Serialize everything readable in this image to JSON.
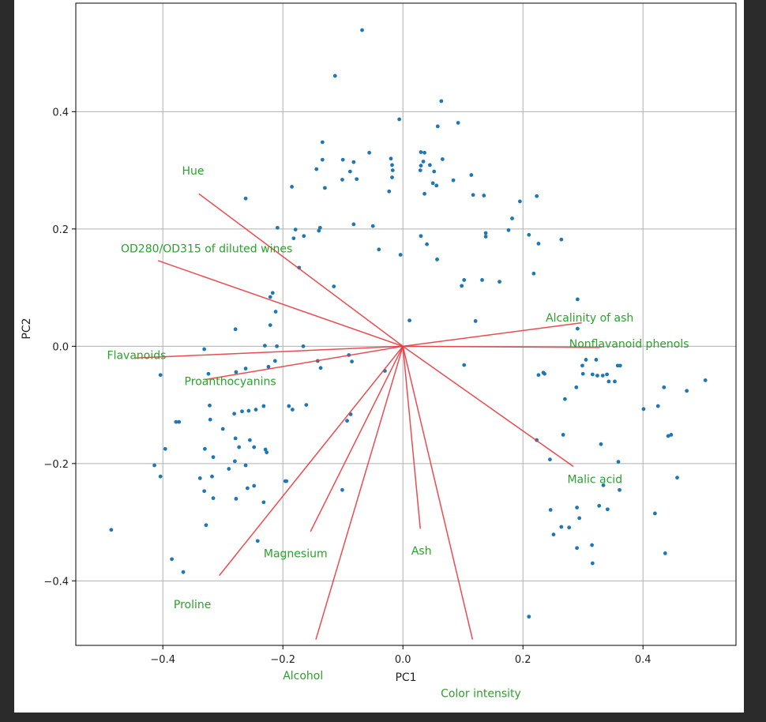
{
  "chart_data": {
    "type": "scatter",
    "title": "",
    "xlabel": "PC1",
    "ylabel": "PC2",
    "xlim": [
      -0.545,
      0.555
    ],
    "ylim": [
      -0.51,
      0.585
    ],
    "grid": true,
    "x_ticks": [
      "−0.4",
      "−0.2",
      "0.0",
      "0.2",
      "0.4"
    ],
    "x_tick_values": [
      -0.4,
      -0.2,
      0.0,
      0.2,
      0.4
    ],
    "y_ticks": [
      "0.4",
      "0.2",
      "0.0",
      "−0.2",
      "−0.4"
    ],
    "y_tick_values": [
      0.4,
      0.2,
      0.0,
      -0.2,
      -0.4
    ],
    "point_color": "#1f77b4",
    "arrow_color": "#e8393d",
    "label_color": "#2ca02c",
    "points": [
      [
        -0.068,
        0.539
      ],
      [
        -0.113,
        0.461
      ],
      [
        0.064,
        0.418
      ],
      [
        0.092,
        0.381
      ],
      [
        -0.006,
        0.387
      ],
      [
        0.058,
        0.375
      ],
      [
        -0.134,
        0.348
      ],
      [
        -0.144,
        0.302
      ],
      [
        -0.134,
        0.318
      ],
      [
        -0.1,
        0.318
      ],
      [
        -0.082,
        0.314
      ],
      [
        -0.056,
        0.33
      ],
      [
        -0.088,
        0.298
      ],
      [
        -0.101,
        0.284
      ],
      [
        -0.077,
        0.285
      ],
      [
        -0.13,
        0.27
      ],
      [
        -0.185,
        0.272
      ],
      [
        -0.262,
        0.252
      ],
      [
        -0.02,
        0.32
      ],
      [
        -0.018,
        0.309
      ],
      [
        -0.017,
        0.3
      ],
      [
        -0.018,
        0.288
      ],
      [
        -0.023,
        0.264
      ],
      [
        0.03,
        0.331
      ],
      [
        0.036,
        0.33
      ],
      [
        0.034,
        0.315
      ],
      [
        0.045,
        0.309
      ],
      [
        0.066,
        0.319
      ],
      [
        0.052,
        0.298
      ],
      [
        0.029,
        0.3
      ],
      [
        0.03,
        0.308
      ],
      [
        0.05,
        0.278
      ],
      [
        0.056,
        0.274
      ],
      [
        0.036,
        0.26
      ],
      [
        0.084,
        0.283
      ],
      [
        0.114,
        0.292
      ],
      [
        0.117,
        0.258
      ],
      [
        0.135,
        0.257
      ],
      [
        0.195,
        0.247
      ],
      [
        0.223,
        0.256
      ],
      [
        0.182,
        0.218
      ],
      [
        -0.209,
        0.202
      ],
      [
        -0.179,
        0.199
      ],
      [
        -0.165,
        0.188
      ],
      [
        -0.14,
        0.197
      ],
      [
        -0.138,
        0.202
      ],
      [
        -0.082,
        0.208
      ],
      [
        -0.05,
        0.205
      ],
      [
        -0.182,
        0.184
      ],
      [
        -0.04,
        0.165
      ],
      [
        -0.004,
        0.156
      ],
      [
        0.03,
        0.188
      ],
      [
        0.04,
        0.174
      ],
      [
        0.057,
        0.148
      ],
      [
        0.138,
        0.193
      ],
      [
        0.138,
        0.187
      ],
      [
        0.176,
        0.198
      ],
      [
        0.21,
        0.19
      ],
      [
        0.226,
        0.175
      ],
      [
        0.264,
        0.182
      ],
      [
        -0.173,
        0.134
      ],
      [
        -0.115,
        0.102
      ],
      [
        0.218,
        0.124
      ],
      [
        0.102,
        0.113
      ],
      [
        0.132,
        0.113
      ],
      [
        0.161,
        0.11
      ],
      [
        0.098,
        0.103
      ],
      [
        0.291,
        0.08
      ],
      [
        -0.217,
        0.091
      ],
      [
        -0.221,
        0.084
      ],
      [
        -0.212,
        0.059
      ],
      [
        -0.221,
        0.036
      ],
      [
        0.011,
        0.044
      ],
      [
        0.121,
        0.043
      ],
      [
        0.291,
        0.03
      ],
      [
        -0.279,
        0.029
      ],
      [
        -0.331,
        -0.005
      ],
      [
        -0.23,
        0.001
      ],
      [
        -0.21,
        0.0
      ],
      [
        -0.166,
        0.0
      ],
      [
        -0.09,
        -0.015
      ],
      [
        -0.085,
        -0.026
      ],
      [
        -0.142,
        -0.025
      ],
      [
        -0.137,
        -0.037
      ],
      [
        -0.03,
        -0.042
      ],
      [
        -0.213,
        -0.025
      ],
      [
        -0.224,
        -0.035
      ],
      [
        -0.262,
        -0.038
      ],
      [
        -0.278,
        -0.044
      ],
      [
        -0.324,
        -0.047
      ],
      [
        -0.404,
        -0.049
      ],
      [
        0.102,
        -0.032
      ],
      [
        0.226,
        -0.049
      ],
      [
        0.234,
        -0.045
      ],
      [
        0.236,
        -0.047
      ],
      [
        0.299,
        -0.033
      ],
      [
        0.3,
        -0.047
      ],
      [
        0.316,
        -0.048
      ],
      [
        0.324,
        -0.05
      ],
      [
        0.333,
        -0.05
      ],
      [
        0.358,
        -0.033
      ],
      [
        0.362,
        -0.033
      ],
      [
        0.34,
        -0.048
      ],
      [
        0.322,
        -0.023
      ],
      [
        0.305,
        -0.023
      ],
      [
        0.343,
        -0.06
      ],
      [
        0.353,
        -0.06
      ],
      [
        0.289,
        -0.07
      ],
      [
        0.27,
        -0.09
      ],
      [
        0.435,
        -0.07
      ],
      [
        0.473,
        -0.076
      ],
      [
        0.504,
        -0.058
      ],
      [
        0.401,
        -0.107
      ],
      [
        0.425,
        -0.102
      ],
      [
        -0.322,
        -0.101
      ],
      [
        -0.321,
        -0.125
      ],
      [
        -0.268,
        -0.111
      ],
      [
        -0.257,
        -0.11
      ],
      [
        -0.245,
        -0.108
      ],
      [
        -0.232,
        -0.102
      ],
      [
        -0.19,
        -0.102
      ],
      [
        -0.184,
        -0.108
      ],
      [
        -0.161,
        -0.1
      ],
      [
        -0.093,
        -0.127
      ],
      [
        -0.087,
        -0.116
      ],
      [
        -0.281,
        -0.115
      ],
      [
        -0.3,
        -0.141
      ],
      [
        -0.279,
        -0.157
      ],
      [
        -0.273,
        -0.172
      ],
      [
        -0.255,
        -0.16
      ],
      [
        -0.248,
        -0.172
      ],
      [
        -0.229,
        -0.176
      ],
      [
        -0.227,
        -0.181
      ],
      [
        -0.262,
        -0.203
      ],
      [
        -0.28,
        -0.196
      ],
      [
        -0.29,
        -0.209
      ],
      [
        -0.33,
        -0.175
      ],
      [
        -0.316,
        -0.189
      ],
      [
        -0.373,
        -0.129
      ],
      [
        -0.378,
        -0.129
      ],
      [
        -0.396,
        -0.175
      ],
      [
        -0.414,
        -0.203
      ],
      [
        -0.404,
        -0.222
      ],
      [
        -0.338,
        -0.225
      ],
      [
        -0.318,
        -0.222
      ],
      [
        -0.331,
        -0.247
      ],
      [
        -0.316,
        -0.259
      ],
      [
        -0.278,
        -0.26
      ],
      [
        -0.259,
        -0.242
      ],
      [
        -0.248,
        -0.238
      ],
      [
        -0.232,
        -0.266
      ],
      [
        -0.196,
        -0.23
      ],
      [
        -0.194,
        -0.23
      ],
      [
        -0.101,
        -0.245
      ],
      [
        0.267,
        -0.151
      ],
      [
        0.223,
        -0.16
      ],
      [
        0.245,
        -0.193
      ],
      [
        0.33,
        -0.167
      ],
      [
        0.359,
        -0.197
      ],
      [
        0.361,
        -0.245
      ],
      [
        0.334,
        -0.237
      ],
      [
        0.341,
        -0.278
      ],
      [
        0.327,
        -0.272
      ],
      [
        0.29,
        -0.275
      ],
      [
        0.442,
        -0.153
      ],
      [
        0.447,
        -0.151
      ],
      [
        0.457,
        -0.224
      ],
      [
        0.42,
        -0.285
      ],
      [
        0.437,
        -0.353
      ],
      [
        0.246,
        -0.279
      ],
      [
        0.251,
        -0.321
      ],
      [
        0.264,
        -0.308
      ],
      [
        0.277,
        -0.309
      ],
      [
        0.294,
        -0.293
      ],
      [
        0.29,
        -0.344
      ],
      [
        0.315,
        -0.339
      ],
      [
        0.316,
        -0.37
      ],
      [
        0.21,
        -0.461
      ],
      [
        -0.328,
        -0.305
      ],
      [
        -0.242,
        -0.332
      ],
      [
        -0.486,
        -0.313
      ],
      [
        -0.385,
        -0.363
      ],
      [
        -0.366,
        -0.385
      ]
    ],
    "loadings": [
      {
        "name": "Hue",
        "end": [
          -0.34,
          0.26
        ],
        "label_pos": [
          -0.368,
          0.293
        ]
      },
      {
        "name": "OD280/OD315 of diluted wines",
        "end": [
          -0.408,
          0.146
        ],
        "label_pos": [
          -0.47,
          0.16
        ]
      },
      {
        "name": "Flavanoids",
        "end": [
          -0.446,
          -0.02
        ],
        "label_pos": [
          -0.493,
          -0.022
        ]
      },
      {
        "name": "Proanthocyanins",
        "end": [
          -0.33,
          -0.057
        ],
        "label_pos": [
          -0.364,
          -0.066
        ]
      },
      {
        "name": "Alcalinity of ash",
        "end": [
          0.298,
          0.04
        ],
        "label_pos": [
          0.238,
          0.042
        ]
      },
      {
        "name": "Nonflavanoid phenols",
        "end": [
          0.328,
          -0.002
        ],
        "label_pos": [
          0.277,
          -0.002
        ]
      },
      {
        "name": "Malic acid",
        "end": [
          0.284,
          -0.205
        ],
        "label_pos": [
          0.274,
          -0.233
        ]
      },
      {
        "name": "Ash",
        "end": [
          0.029,
          -0.311
        ],
        "label_pos": [
          0.014,
          -0.355
        ]
      },
      {
        "name": "Magnesium",
        "end": [
          -0.154,
          -0.316
        ],
        "label_pos": [
          -0.232,
          -0.36
        ]
      },
      {
        "name": "Proline",
        "end": [
          -0.306,
          -0.391
        ],
        "label_pos": [
          -0.382,
          -0.447
        ]
      },
      {
        "name": "Alcohol",
        "end": [
          -0.145,
          -0.5
        ],
        "label_pos": [
          -0.2,
          -0.568
        ]
      },
      {
        "name": "Color intensity",
        "end": [
          0.116,
          -0.5
        ],
        "label_pos": [
          0.063,
          -0.598
        ]
      }
    ]
  }
}
